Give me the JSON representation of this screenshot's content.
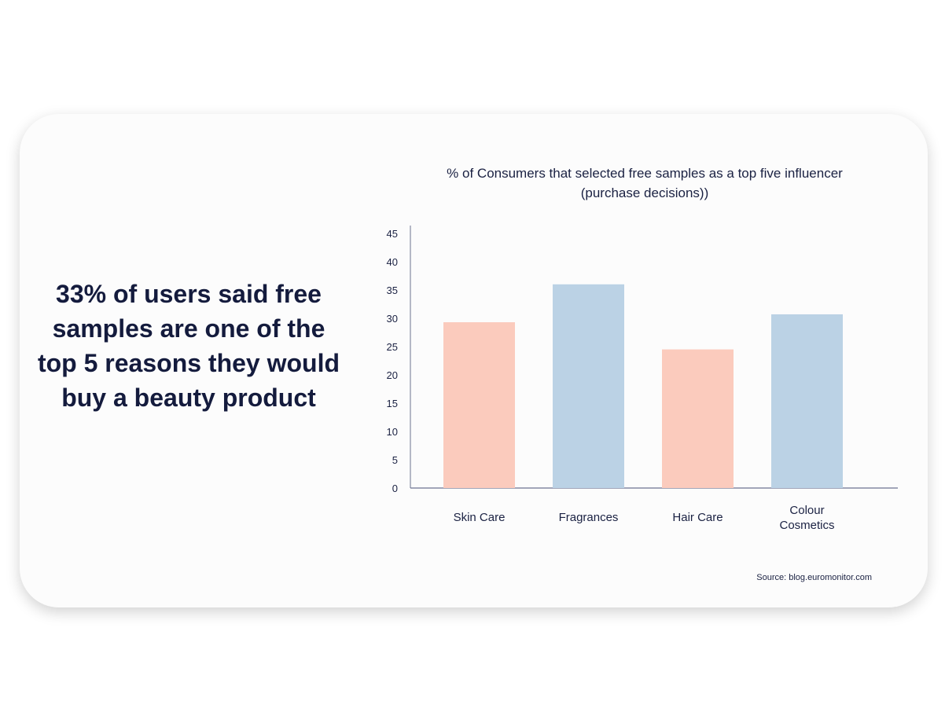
{
  "headline": "33% of users said free samples are one of the top 5 reasons they would buy a beauty product",
  "source": "Source: blog.euromonitor.com",
  "colors": {
    "peach": "#fbcbbd",
    "blue": "#bbd2e5",
    "axis": "#6b7391",
    "text": "#1a2142"
  },
  "chart_data": {
    "type": "bar",
    "title": "% of Consumers that selected free samples as a top five influencer (purchase decisions))",
    "categories": [
      [
        "Skin Care"
      ],
      [
        "Fragrances"
      ],
      [
        "Hair Care"
      ],
      [
        "Colour",
        "Cosmetics"
      ]
    ],
    "values": [
      29.3,
      36.0,
      24.5,
      30.7
    ],
    "bar_colors": [
      "#fbcbbd",
      "#bbd2e5",
      "#fbcbbd",
      "#bbd2e5"
    ],
    "ylim": [
      0,
      45
    ],
    "yticks": [
      0,
      5,
      10,
      15,
      20,
      25,
      30,
      35,
      40,
      45
    ],
    "xlabel": "",
    "ylabel": "",
    "grid": false,
    "legend": "none"
  }
}
